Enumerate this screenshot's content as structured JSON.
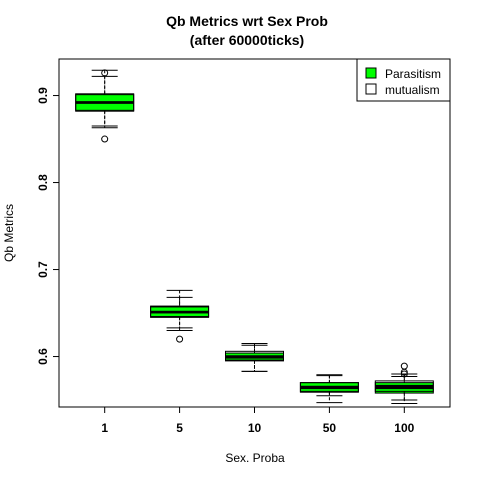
{
  "chart_data": {
    "type": "boxplot",
    "title": "Qb Metrics wrt Sex Prob",
    "subtitle": "(after 60000ticks)",
    "xlabel": "Sex. Proba",
    "ylabel": "Qb Metrics",
    "categories": [
      "1",
      "5",
      "10",
      "50",
      "100"
    ],
    "ylim": [
      0.542,
      0.942
    ],
    "yticks": [
      0.6,
      0.7,
      0.8,
      0.9
    ],
    "grid": false,
    "legend_position": "top-right",
    "series": [
      {
        "name": "Parasitism",
        "color": "#00ff00",
        "boxes": [
          {
            "q1": 0.882,
            "median": 0.892,
            "q3": 0.902,
            "whisker_low": 0.865,
            "whisker_high": 0.929,
            "outliers": [
              0.85,
              0.926
            ]
          },
          {
            "q1": 0.645,
            "median": 0.651,
            "q3": 0.658,
            "whisker_low": 0.63,
            "whisker_high": 0.676,
            "outliers": [
              0.62
            ]
          },
          {
            "q1": 0.595,
            "median": 0.599,
            "q3": 0.604,
            "whisker_low": 0.583,
            "whisker_high": 0.613,
            "outliers": []
          },
          {
            "q1": 0.559,
            "median": 0.564,
            "q3": 0.57,
            "whisker_low": 0.547,
            "whisker_high": 0.579,
            "outliers": []
          },
          {
            "q1": 0.558,
            "median": 0.564,
            "q3": 0.57,
            "whisker_low": 0.546,
            "whisker_high": 0.577,
            "outliers": [
              0.58,
              0.589
            ]
          }
        ]
      },
      {
        "name": "mutualism",
        "color": "#ffffff",
        "boxes": [
          {
            "q1": 0.883,
            "median": 0.892,
            "q3": 0.901,
            "whisker_low": 0.863,
            "whisker_high": 0.922,
            "outliers": []
          },
          {
            "q1": 0.646,
            "median": 0.651,
            "q3": 0.657,
            "whisker_low": 0.633,
            "whisker_high": 0.668,
            "outliers": []
          },
          {
            "q1": 0.596,
            "median": 0.6,
            "q3": 0.606,
            "whisker_low": 0.583,
            "whisker_high": 0.615,
            "outliers": []
          },
          {
            "q1": 0.56,
            "median": 0.565,
            "q3": 0.57,
            "whisker_low": 0.555,
            "whisker_high": 0.578,
            "outliers": []
          },
          {
            "q1": 0.56,
            "median": 0.566,
            "q3": 0.572,
            "whisker_low": 0.55,
            "whisker_high": 0.58,
            "outliers": [
              0.582
            ]
          }
        ]
      }
    ]
  }
}
